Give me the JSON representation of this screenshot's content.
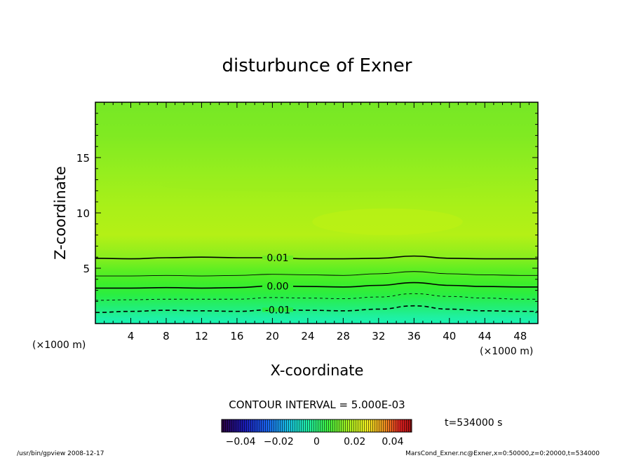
{
  "chart_data": {
    "type": "contour",
    "title": "disturbunce of Exner",
    "xlabel": "X-coordinate",
    "ylabel": "Z-coordinate",
    "x_unit": "(×1000 m)",
    "y_unit": "(×1000 m)",
    "xlim": [
      0,
      50
    ],
    "ylim": [
      0,
      20
    ],
    "x_ticks": [
      4,
      8,
      12,
      16,
      20,
      24,
      28,
      32,
      36,
      40,
      44,
      48
    ],
    "y_ticks": [
      5,
      10,
      15
    ],
    "contour_interval_text": "CONTOUR INTERVAL = 5.000E-03",
    "time_text": "t=534000 s",
    "contours": [
      {
        "level": -0.01,
        "label": "-0.01",
        "style": "dashed",
        "x": [
          0,
          4,
          8,
          12,
          16,
          20,
          24,
          28,
          32,
          36,
          40,
          44,
          48,
          50
        ],
        "z": [
          1.0,
          1.1,
          1.2,
          1.15,
          1.1,
          1.25,
          1.2,
          1.15,
          1.3,
          1.6,
          1.3,
          1.15,
          1.1,
          1.1
        ]
      },
      {
        "level": -0.005,
        "label": "",
        "style": "dashed",
        "x": [
          0,
          4,
          8,
          12,
          16,
          20,
          24,
          28,
          32,
          36,
          40,
          44,
          48,
          50
        ],
        "z": [
          2.1,
          2.15,
          2.2,
          2.2,
          2.2,
          2.35,
          2.3,
          2.25,
          2.4,
          2.7,
          2.45,
          2.3,
          2.2,
          2.2
        ]
      },
      {
        "level": 0.0,
        "label": "0.00",
        "style": "solid",
        "x": [
          0,
          4,
          8,
          12,
          16,
          20,
          24,
          28,
          32,
          36,
          40,
          44,
          48,
          50
        ],
        "z": [
          3.2,
          3.2,
          3.25,
          3.2,
          3.25,
          3.4,
          3.35,
          3.3,
          3.45,
          3.7,
          3.45,
          3.35,
          3.3,
          3.3
        ]
      },
      {
        "level": 0.005,
        "label": "",
        "style": "solid",
        "x": [
          0,
          4,
          8,
          12,
          16,
          20,
          24,
          28,
          32,
          36,
          40,
          44,
          48,
          50
        ],
        "z": [
          4.3,
          4.3,
          4.35,
          4.3,
          4.35,
          4.45,
          4.4,
          4.35,
          4.5,
          4.7,
          4.5,
          4.4,
          4.35,
          4.35
        ]
      },
      {
        "level": 0.01,
        "label": "0.01",
        "style": "solid",
        "x": [
          0,
          4,
          8,
          12,
          16,
          20,
          24,
          28,
          32,
          36,
          40,
          44,
          48,
          50
        ],
        "z": [
          5.9,
          5.85,
          5.95,
          6.0,
          5.95,
          5.95,
          5.85,
          5.85,
          5.9,
          6.1,
          5.9,
          5.85,
          5.85,
          5.85
        ]
      }
    ],
    "colorbar": {
      "range": [
        -0.05,
        0.05
      ],
      "ticks": [
        {
          "value": -0.04,
          "label": "−0.04"
        },
        {
          "value": -0.02,
          "label": "−0.02"
        },
        {
          "value": 0,
          "label": "0"
        },
        {
          "value": 0.02,
          "label": "0.02"
        },
        {
          "value": 0.04,
          "label": "0.04"
        }
      ]
    },
    "footer_left": "/usr/bin/gpview  2008-12-17",
    "footer_right": "MarsCond_Exner.nc@Exner,x=0:50000,z=0:20000,t=534000"
  }
}
